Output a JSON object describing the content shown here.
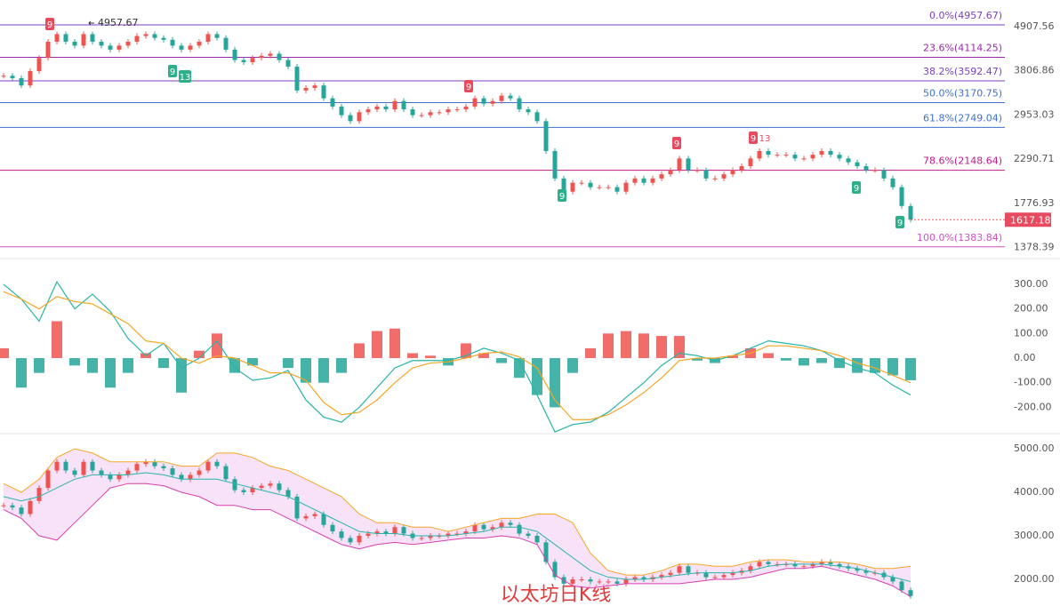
{
  "chart_data": [
    {
      "type": "candlestick",
      "log_scale": true,
      "ylim": [
        1300,
        5720
      ],
      "yticks": [
        {
          "value": 4907.56,
          "label": "4907.56"
        },
        {
          "value": 3806.86,
          "label": "3806.86"
        },
        {
          "value": 2953.03,
          "label": "2953.03"
        },
        {
          "value": 2290.71,
          "label": "2290.71"
        },
        {
          "value": 1776.93,
          "label": "1776.93"
        },
        {
          "value": 1378.39,
          "label": "1378.39"
        }
      ],
      "up_color": "#ef5350",
      "down_color": "#26a69a",
      "closes": [
        3700,
        3650,
        3500,
        3800,
        4100,
        4500,
        4700,
        4500,
        4400,
        4700,
        4500,
        4400,
        4300,
        4400,
        4500,
        4650,
        4700,
        4600,
        4550,
        4400,
        4300,
        4400,
        4500,
        4700,
        4600,
        4300,
        4050,
        4000,
        4100,
        4150,
        4200,
        4050,
        3900,
        3400,
        3450,
        3500,
        3250,
        3100,
        2950,
        2850,
        3000,
        3050,
        3100,
        3050,
        3200,
        3050,
        2950,
        2950,
        3000,
        3000,
        3050,
        3050,
        3100,
        3250,
        3150,
        3200,
        3300,
        3250,
        3050,
        3000,
        2850,
        2400,
        2050,
        1900,
        2000,
        2000,
        1950,
        1950,
        1950,
        1900,
        2000,
        2050,
        2000,
        2050,
        2100,
        2150,
        2300,
        2150,
        2150,
        2050,
        2050,
        2100,
        2150,
        2200,
        2300,
        2400,
        2350,
        2350,
        2350,
        2300,
        2300,
        2350,
        2400,
        2350,
        2300,
        2250,
        2200,
        2150,
        2150,
        2050,
        1950,
        1750,
        1617.18
      ],
      "high": 4957.67,
      "fib_levels": [
        {
          "value": 4957.67,
          "label": "0.0%(4957.67)",
          "color": "#7b3fc4"
        },
        {
          "value": 4114.25,
          "label": "23.6%(4114.25)",
          "color": "#9c27b0"
        },
        {
          "value": 3592.47,
          "label": "38.2%(3592.47)",
          "color": "#7b3fc4"
        },
        {
          "value": 3170.75,
          "label": "50.0%(3170.75)",
          "color": "#3f6fd1"
        },
        {
          "value": 2749.04,
          "label": "61.8%(2749.04)",
          "color": "#3f6fd1"
        },
        {
          "value": 2148.64,
          "label": "78.6%(2148.64)",
          "color": "#c2188f"
        },
        {
          "value": 1383.84,
          "label": "100.0%(1383.84)",
          "color": "#d14fc4"
        }
      ],
      "td_markers": [
        {
          "label": "9",
          "color": "#e84a5f"
        },
        {
          "label": "9",
          "color": "#2bb08a"
        },
        {
          "label": "13",
          "color": "#2bb08a"
        },
        {
          "label": "9",
          "color": "#e84a5f"
        },
        {
          "label": "9",
          "color": "#2bb08a"
        },
        {
          "label": "9",
          "color": "#e84a5f"
        },
        {
          "label": "9",
          "color": "#e84a5f"
        },
        {
          "label": "13",
          "color": "#e84a5f"
        },
        {
          "label": "9",
          "color": "#2bb08a"
        },
        {
          "label": "9",
          "color": "#2bb08a"
        }
      ]
    },
    {
      "type": "macd",
      "ylim": [
        -296,
        390
      ],
      "yticks": [
        {
          "value": 300,
          "label": "300.00"
        },
        {
          "value": 200,
          "label": "200.00"
        },
        {
          "value": 100,
          "label": "100.00"
        },
        {
          "value": 0,
          "label": "0.00"
        },
        {
          "value": -100,
          "label": "-100.00"
        },
        {
          "value": -200,
          "label": "-200.00"
        }
      ],
      "up_color": "#ef5350",
      "down_color": "#26a69a",
      "histogram": [
        40,
        -120,
        -60,
        150,
        -30,
        -60,
        -120,
        -60,
        20,
        -40,
        -140,
        30,
        100,
        -60,
        -30,
        0,
        -40,
        -100,
        -100,
        -60,
        60,
        110,
        120,
        20,
        10,
        -30,
        60,
        20,
        -20,
        -80,
        -150,
        -200,
        -60,
        40,
        100,
        110,
        100,
        90,
        90,
        -10,
        -20,
        10,
        40,
        20,
        -10,
        -30,
        -20,
        -40,
        -60,
        -60,
        -70,
        -90
      ],
      "series": [
        {
          "color": "#26b5a8",
          "values": [
            300,
            240,
            150,
            310,
            200,
            260,
            190,
            80,
            10,
            60,
            -40,
            0,
            70,
            -40,
            -90,
            -80,
            -50,
            -170,
            -240,
            -260,
            -200,
            -120,
            -40,
            -10,
            -10,
            -10,
            10,
            40,
            20,
            -10,
            -150,
            -300,
            -270,
            -260,
            -220,
            -160,
            -100,
            -30,
            20,
            10,
            -10,
            10,
            40,
            70,
            60,
            50,
            30,
            -10,
            -40,
            -60,
            -110,
            -150
          ]
        },
        {
          "color": "#f5a623",
          "values": [
            270,
            240,
            200,
            250,
            230,
            220,
            180,
            140,
            70,
            60,
            0,
            -20,
            10,
            0,
            -30,
            -60,
            -60,
            -90,
            -180,
            -230,
            -220,
            -170,
            -100,
            -40,
            -20,
            -15,
            0,
            20,
            25,
            5,
            -40,
            -170,
            -250,
            -250,
            -230,
            -190,
            -140,
            -80,
            -10,
            0,
            0,
            10,
            20,
            50,
            50,
            40,
            30,
            10,
            -20,
            -40,
            -70,
            -100
          ]
        }
      ]
    },
    {
      "type": "bollinger",
      "title": "以太坊日K线",
      "ylim": [
        1204,
        5306
      ],
      "yticks": [
        {
          "value": 5000,
          "label": "5000.00"
        },
        {
          "value": 4000,
          "label": "4000.00"
        },
        {
          "value": 3000,
          "label": "3000.00"
        },
        {
          "value": 2000,
          "label": "2000.00"
        }
      ],
      "band_color": "#f3d6f5",
      "series": [
        {
          "color": "#f5a623",
          "values": [
            4200,
            4000,
            4300,
            4800,
            5000,
            4900,
            4700,
            4700,
            4700,
            4700,
            4600,
            4600,
            4900,
            4900,
            4800,
            4600,
            4500,
            4300,
            4100,
            3900,
            3500,
            3300,
            3300,
            3200,
            3200,
            3100,
            3200,
            3300,
            3400,
            3400,
            3500,
            3500,
            3300,
            2600,
            2200,
            2100,
            2100,
            2200,
            2350,
            2350,
            2300,
            2300,
            2400,
            2450,
            2450,
            2400,
            2400,
            2400,
            2350,
            2250,
            2250,
            2300
          ]
        },
        {
          "color": "#26b5a8",
          "values": [
            3900,
            3800,
            3900,
            4100,
            4300,
            4400,
            4400,
            4400,
            4450,
            4400,
            4300,
            4300,
            4300,
            4200,
            4100,
            4000,
            3900,
            3700,
            3500,
            3300,
            3100,
            3050,
            3050,
            3000,
            3000,
            3000,
            3050,
            3100,
            3200,
            3200,
            3100,
            2800,
            2500,
            2200,
            2050,
            2000,
            2000,
            2050,
            2100,
            2150,
            2150,
            2150,
            2200,
            2300,
            2350,
            2350,
            2350,
            2300,
            2250,
            2150,
            2050,
            1950
          ]
        },
        {
          "color": "#d63fb0",
          "values": [
            3600,
            3400,
            3000,
            2900,
            3300,
            3700,
            4100,
            4200,
            4200,
            4150,
            4000,
            3900,
            3700,
            3700,
            3600,
            3600,
            3400,
            3200,
            3000,
            2800,
            2700,
            2800,
            2850,
            2800,
            2850,
            2900,
            2950,
            2950,
            3000,
            2950,
            2800,
            2100,
            1850,
            1800,
            1850,
            1900,
            1900,
            1900,
            1900,
            1950,
            2000,
            2000,
            2050,
            2150,
            2250,
            2250,
            2300,
            2200,
            2100,
            2000,
            1850,
            1600
          ]
        }
      ]
    }
  ]
}
